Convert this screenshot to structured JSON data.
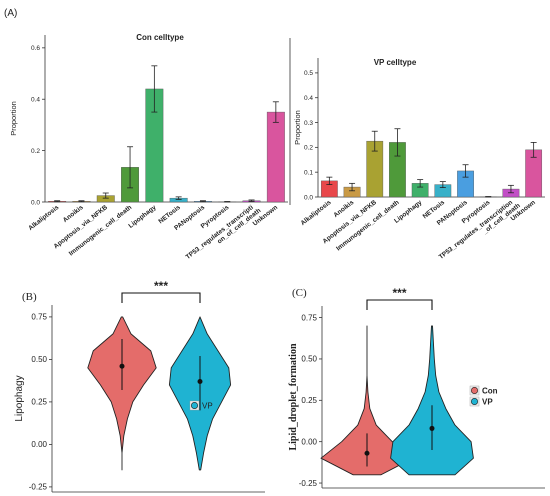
{
  "panels": [
    "(A)",
    "(B)",
    "(C)"
  ],
  "chart_data": [
    {
      "type": "bar",
      "title": "Con  celltype",
      "y_label": "Proportion",
      "categories": [
        "Alkaliptosis",
        "Anoikis",
        "Apoptosis_via_NFKB",
        "Immunogenic_cell_death",
        "Lipophagy",
        "NETosis",
        "PANoptosis",
        "Pyroptosis",
        [
          "TP53_regulates_transcripti",
          "on_of_cell_death"
        ],
        "Unknown"
      ],
      "values": [
        0.003,
        0.003,
        0.025,
        0.135,
        0.44,
        0.015,
        0.003,
        0.001,
        0.005,
        0.35
      ],
      "errors": [
        0.002,
        0.002,
        0.01,
        0.08,
        0.09,
        0.005,
        0.002,
        0.001,
        0.003,
        0.04
      ],
      "colors": [
        "#e8474a",
        "#c99a45",
        "#a9a232",
        "#4f9a3a",
        "#3fb06a",
        "#38b0c8",
        "#4a9ee0",
        "#7a7ae0",
        "#c24fc6",
        "#d9559e"
      ],
      "ylim": [
        0,
        0.65
      ],
      "yticks": [
        {
          "value": 0,
          "label": "0.0"
        },
        0.2,
        0.4,
        0.6
      ]
    },
    {
      "type": "bar",
      "title": "VP celltype",
      "y_label": "Proportion",
      "categories": [
        "Alkaliptosis",
        "Anoikis",
        "Apoptosis_via_NFKB",
        "Immunogenic_cell_death",
        "Lipophagy",
        "NETosis",
        "PANoptosis",
        "Pyroptosis",
        [
          "TP53_regulates_transcription",
          "_of_cell_death"
        ],
        "Unknown"
      ],
      "values": [
        0.065,
        0.04,
        0.225,
        0.22,
        0.055,
        0.05,
        0.105,
        0.001,
        0.032,
        0.19
      ],
      "errors": [
        0.015,
        0.015,
        0.04,
        0.055,
        0.015,
        0.012,
        0.025,
        0.001,
        0.015,
        0.03
      ],
      "colors": [
        "#e8474a",
        "#c99a45",
        "#a9a232",
        "#4f9a3a",
        "#3fb06a",
        "#38b0c8",
        "#4a9ee0",
        "#7a7ae0",
        "#c24fc6",
        "#d9559e"
      ],
      "ylim": [
        0,
        0.56
      ],
      "yticks": [
        {
          "value": 0,
          "label": "0.0"
        },
        0.1,
        0.2,
        0.3,
        0.4,
        0.5
      ]
    },
    {
      "type": "violin",
      "y_label": "Lipophagy",
      "significance": "***",
      "density_y": [
        -0.15,
        -0.05,
        0.05,
        0.15,
        0.25,
        0.35,
        0.45,
        0.55,
        0.65,
        0.75
      ],
      "series": [
        {
          "name": "Con",
          "color": "#e46c6a",
          "center": 0.46,
          "interval": [
            0.32,
            0.62
          ],
          "density": [
            0,
            0,
            0.05,
            0.15,
            0.3,
            0.6,
            0.95,
            0.8,
            0.25,
            0.02
          ]
        },
        {
          "name": "VP",
          "color": "#1fb3d2",
          "center": 0.37,
          "interval": [
            0.2,
            0.52
          ],
          "density": [
            0.02,
            0.1,
            0.2,
            0.35,
            0.6,
            0.85,
            0.8,
            0.5,
            0.2,
            0
          ]
        }
      ],
      "ylim": [
        -0.28,
        0.82
      ],
      "yticks": [
        -0.25,
        {
          "value": 0,
          "label": "0.00"
        },
        0.25,
        {
          "value": 0.5,
          "label": "0.50"
        },
        0.75
      ]
    },
    {
      "type": "violin",
      "y_label": "Lipid_droplet_formation",
      "significance": "***",
      "density_y": [
        -0.2,
        -0.1,
        0,
        0.1,
        0.2,
        0.3,
        0.4,
        0.5,
        0.6,
        0.7
      ],
      "series": [
        {
          "name": "Con",
          "color": "#e46c6a",
          "center": -0.07,
          "interval": [
            -0.15,
            0.05
          ],
          "density": [
            0.3,
            1,
            0.55,
            0.2,
            0.06,
            0.02,
            0,
            0,
            0,
            0
          ]
        },
        {
          "name": "VP",
          "color": "#1fb3d2",
          "center": 0.08,
          "interval": [
            -0.05,
            0.22
          ],
          "density": [
            0.5,
            0.9,
            0.85,
            0.5,
            0.3,
            0.15,
            0.08,
            0.05,
            0.03,
            0.01
          ]
        }
      ],
      "ylim": [
        -0.28,
        0.82
      ],
      "yticks": [
        -0.25,
        {
          "value": 0,
          "label": "0.00"
        },
        0.25,
        {
          "value": 0.5,
          "label": "0.50"
        },
        0.75
      ]
    }
  ]
}
